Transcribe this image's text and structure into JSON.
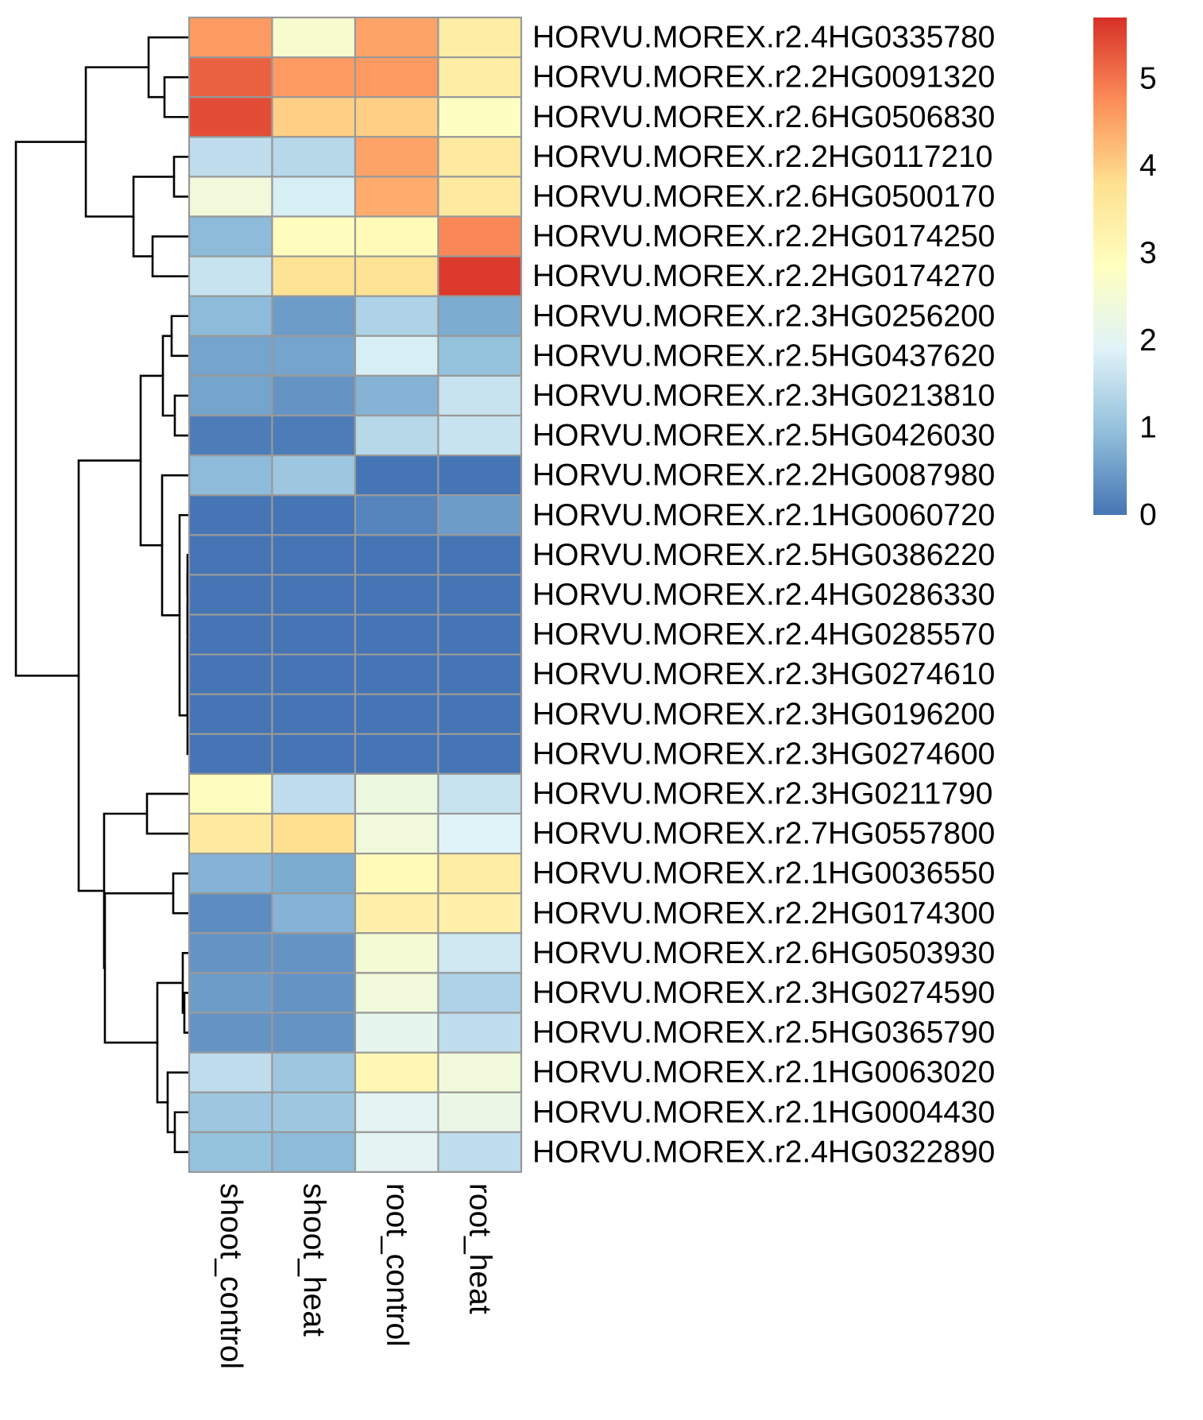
{
  "chart_data": {
    "type": "heatmap",
    "title": "",
    "columns": [
      "shoot_control",
      "shoot_heat",
      "root_control",
      "root_heat"
    ],
    "rows": [
      "HORVU.MOREX.r2.4HG0335780",
      "HORVU.MOREX.r2.2HG0091320",
      "HORVU.MOREX.r2.6HG0506830",
      "HORVU.MOREX.r2.2HG0117210",
      "HORVU.MOREX.r2.6HG0500170",
      "HORVU.MOREX.r2.2HG0174250",
      "HORVU.MOREX.r2.2HG0174270",
      "HORVU.MOREX.r2.3HG0256200",
      "HORVU.MOREX.r2.5HG0437620",
      "HORVU.MOREX.r2.3HG0213810",
      "HORVU.MOREX.r2.5HG0426030",
      "HORVU.MOREX.r2.2HG0087980",
      "HORVU.MOREX.r2.1HG0060720",
      "HORVU.MOREX.r2.5HG0386220",
      "HORVU.MOREX.r2.4HG0286330",
      "HORVU.MOREX.r2.4HG0285570",
      "HORVU.MOREX.r2.3HG0274610",
      "HORVU.MOREX.r2.3HG0196200",
      "HORVU.MOREX.r2.3HG0274600",
      "HORVU.MOREX.r2.3HG0211790",
      "HORVU.MOREX.r2.7HG0557800",
      "HORVU.MOREX.r2.1HG0036550",
      "HORVU.MOREX.r2.2HG0174300",
      "HORVU.MOREX.r2.6HG0503930",
      "HORVU.MOREX.r2.3HG0274590",
      "HORVU.MOREX.r2.5HG0365790",
      "HORVU.MOREX.r2.1HG0063020",
      "HORVU.MOREX.r2.1HG0004430",
      "HORVU.MOREX.r2.4HG0322890"
    ],
    "values": [
      [
        4.6,
        2.6,
        4.5,
        3.4
      ],
      [
        5.2,
        4.6,
        4.6,
        3.4
      ],
      [
        5.4,
        4.0,
        4.0,
        2.8
      ],
      [
        1.5,
        1.4,
        4.5,
        3.5
      ],
      [
        2.4,
        1.8,
        4.4,
        3.5
      ],
      [
        0.9,
        2.9,
        3.0,
        4.8
      ],
      [
        1.6,
        3.7,
        3.7,
        5.6
      ],
      [
        0.9,
        0.5,
        1.3,
        0.7
      ],
      [
        0.6,
        0.6,
        1.8,
        1.0
      ],
      [
        0.6,
        0.4,
        0.8,
        1.6
      ],
      [
        0.1,
        0.1,
        1.4,
        1.6
      ],
      [
        0.9,
        1.1,
        0.0,
        0.0
      ],
      [
        0.0,
        0.0,
        0.2,
        0.5
      ],
      [
        0.0,
        0.0,
        0.0,
        0.0
      ],
      [
        0.0,
        0.0,
        0.0,
        0.0
      ],
      [
        0.0,
        0.0,
        0.0,
        0.0
      ],
      [
        0.0,
        0.0,
        0.0,
        0.0
      ],
      [
        0.0,
        0.0,
        0.0,
        0.0
      ],
      [
        0.0,
        0.0,
        0.0,
        0.0
      ],
      [
        2.9,
        1.5,
        2.3,
        1.6
      ],
      [
        3.5,
        3.8,
        2.4,
        1.9
      ],
      [
        0.8,
        0.7,
        3.0,
        3.4
      ],
      [
        0.3,
        0.8,
        3.3,
        3.3
      ],
      [
        0.4,
        0.4,
        2.5,
        1.7
      ],
      [
        0.5,
        0.4,
        2.4,
        1.3
      ],
      [
        0.4,
        0.4,
        2.1,
        1.5
      ],
      [
        1.5,
        1.1,
        3.1,
        2.4
      ],
      [
        1.1,
        1.1,
        2.0,
        2.2
      ],
      [
        1.0,
        0.9,
        2.0,
        1.5
      ]
    ],
    "color_scale": {
      "min": 0,
      "max": 5.7,
      "colors": [
        "#4575B4",
        "#91BFDB",
        "#E0F3F8",
        "#FFFFBF",
        "#FEE090",
        "#FC8D59",
        "#D73027"
      ]
    },
    "legend": {
      "position": "right",
      "ticks": [
        "0",
        "1",
        "2",
        "3",
        "4",
        "5"
      ]
    },
    "row_dendrogram": true,
    "cell_border_color": "#999999"
  }
}
